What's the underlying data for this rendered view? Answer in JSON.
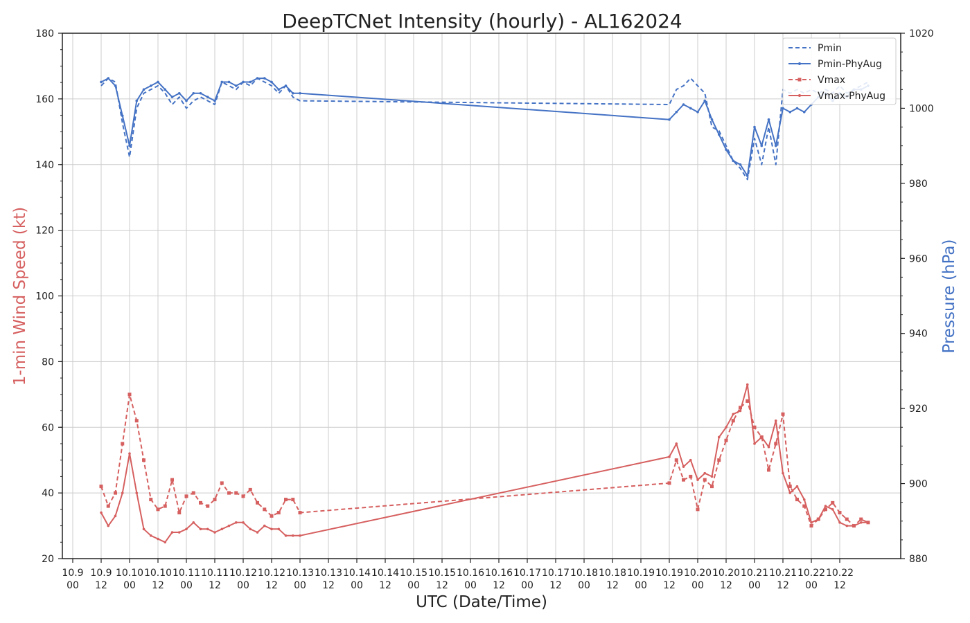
{
  "chart_data": {
    "type": "line",
    "title": "DeepTCNet Intensity (hourly) - AL162024",
    "xlabel": "UTC (Date/Time)",
    "ylabel_left": "1-min Wind Speed (kt)",
    "ylabel_right": "Pressure (hPa)",
    "ylim_left": [
      20,
      180
    ],
    "ylim_right": [
      880,
      1020
    ],
    "yticks_left": [
      "20",
      "40",
      "60",
      "80",
      "100",
      "120",
      "140",
      "160",
      "180"
    ],
    "yticks_right": [
      "880",
      "900",
      "920",
      "940",
      "960",
      "980",
      "1000",
      "1020"
    ],
    "xticks": [
      {
        "date": "10.9",
        "time": "00"
      },
      {
        "date": "10.9",
        "time": "12"
      },
      {
        "date": "10.10",
        "time": "00"
      },
      {
        "date": "10.10",
        "time": "12"
      },
      {
        "date": "10.11",
        "time": "00"
      },
      {
        "date": "10.11",
        "time": "12"
      },
      {
        "date": "10.12",
        "time": "00"
      },
      {
        "date": "10.12",
        "time": "12"
      },
      {
        "date": "10.13",
        "time": "00"
      },
      {
        "date": "10.13",
        "time": "12"
      },
      {
        "date": "10.14",
        "time": "00"
      },
      {
        "date": "10.14",
        "time": "12"
      },
      {
        "date": "10.15",
        "time": "00"
      },
      {
        "date": "10.15",
        "time": "12"
      },
      {
        "date": "10.16",
        "time": "00"
      },
      {
        "date": "10.16",
        "time": "12"
      },
      {
        "date": "10.17",
        "time": "00"
      },
      {
        "date": "10.17",
        "time": "12"
      },
      {
        "date": "10.18",
        "time": "00"
      },
      {
        "date": "10.18",
        "time": "12"
      },
      {
        "date": "10.19",
        "time": "00"
      },
      {
        "date": "10.19",
        "time": "12"
      },
      {
        "date": "10.20",
        "time": "00"
      },
      {
        "date": "10.20",
        "time": "12"
      },
      {
        "date": "10.21",
        "time": "00"
      },
      {
        "date": "10.21",
        "time": "12"
      },
      {
        "date": "10.22",
        "time": "00"
      },
      {
        "date": "10.22",
        "time": "12"
      }
    ],
    "grid": true,
    "legend_position": "top-right",
    "series": [
      {
        "name": "Pmin",
        "axis": "right",
        "color": "#4472c4",
        "style": "dashed",
        "marker": "none",
        "x": [
          "10.9 12",
          "10.9 15",
          "10.9 18",
          "10.9 21",
          "10.10 00",
          "10.10 03",
          "10.10 06",
          "10.10 09",
          "10.10 12",
          "10.10 15",
          "10.10 18",
          "10.10 21",
          "10.11 00",
          "10.11 03",
          "10.11 06",
          "10.11 09",
          "10.11 12",
          "10.11 15",
          "10.11 18",
          "10.11 21",
          "10.12 00",
          "10.12 03",
          "10.12 06",
          "10.12 09",
          "10.12 12",
          "10.12 15",
          "10.12 18",
          "10.12 21",
          "10.13 00",
          "10.19 12",
          "10.19 15",
          "10.19 18",
          "10.19 21",
          "10.20 00",
          "10.20 03",
          "10.20 06",
          "10.20 09",
          "10.20 12",
          "10.20 15",
          "10.20 18",
          "10.20 21",
          "10.21 00",
          "10.21 03",
          "10.21 06",
          "10.21 09",
          "10.21 12",
          "10.21 15",
          "10.21 18",
          "10.21 21",
          "10.22 00",
          "10.22 03",
          "10.22 06",
          "10.22 09",
          "10.22 12",
          "10.22 15",
          "10.22 18",
          "10.22 21",
          "10.23 00"
        ],
        "y": [
          1006,
          1008,
          1007,
          996,
          987,
          1000,
          1004,
          1005,
          1006,
          1004,
          1001,
          1003,
          1000,
          1002,
          1003,
          1002,
          1001,
          1007,
          1006,
          1005,
          1007,
          1006,
          1008,
          1007,
          1006,
          1004,
          1006,
          1003,
          1002,
          1001,
          1005,
          1006,
          1008,
          1006,
          1004,
          995,
          994,
          990,
          986,
          984,
          981,
          992,
          985,
          995,
          985,
          1005,
          1004,
          1005,
          1004,
          1005,
          1004,
          1005,
          1004,
          1006,
          1004,
          1005,
          1006,
          1007
        ]
      },
      {
        "name": "Pmin-PhyAug",
        "axis": "right",
        "color": "#4472c4",
        "style": "solid",
        "marker": "dot",
        "x": [
          "10.9 12",
          "10.9 15",
          "10.9 18",
          "10.9 21",
          "10.10 00",
          "10.10 03",
          "10.10 06",
          "10.10 09",
          "10.10 12",
          "10.10 15",
          "10.10 18",
          "10.10 21",
          "10.11 00",
          "10.11 03",
          "10.11 06",
          "10.11 09",
          "10.11 12",
          "10.11 15",
          "10.11 18",
          "10.11 21",
          "10.12 00",
          "10.12 03",
          "10.12 06",
          "10.12 09",
          "10.12 12",
          "10.12 15",
          "10.12 18",
          "10.12 21",
          "10.13 00",
          "10.19 12",
          "10.19 15",
          "10.19 18",
          "10.19 21",
          "10.20 00",
          "10.20 03",
          "10.20 06",
          "10.20 09",
          "10.20 12",
          "10.20 15",
          "10.20 18",
          "10.20 21",
          "10.21 00",
          "10.21 03",
          "10.21 06",
          "10.21 09",
          "10.21 12",
          "10.21 15",
          "10.21 18",
          "10.21 21",
          "10.22 00",
          "10.22 03",
          "10.22 06",
          "10.22 09",
          "10.22 12",
          "10.22 15",
          "10.22 18",
          "10.22 21",
          "10.23 00"
        ],
        "y": [
          1007,
          1008,
          1006,
          998,
          990,
          1002,
          1005,
          1006,
          1007,
          1005,
          1003,
          1004,
          1002,
          1004,
          1004,
          1003,
          1002,
          1007,
          1007,
          1006,
          1007,
          1007,
          1008,
          1008,
          1007,
          1005,
          1006,
          1004,
          1004,
          997,
          999,
          1001,
          1000,
          999,
          1002,
          997,
          993,
          989,
          986,
          985,
          982,
          995,
          990,
          997,
          990,
          1000,
          999,
          1000,
          999,
          1001,
          1003,
          1004,
          1002,
          1004,
          1003,
          1005,
          1005,
          1006
        ]
      },
      {
        "name": "Vmax",
        "axis": "left",
        "color": "#d65f5f",
        "style": "dashed",
        "marker": "square",
        "x": [
          "10.9 12",
          "10.9 15",
          "10.9 18",
          "10.9 21",
          "10.10 00",
          "10.10 03",
          "10.10 06",
          "10.10 09",
          "10.10 12",
          "10.10 15",
          "10.10 18",
          "10.10 21",
          "10.11 00",
          "10.11 03",
          "10.11 06",
          "10.11 09",
          "10.11 12",
          "10.11 15",
          "10.11 18",
          "10.11 21",
          "10.12 00",
          "10.12 03",
          "10.12 06",
          "10.12 09",
          "10.12 12",
          "10.12 15",
          "10.12 18",
          "10.12 21",
          "10.13 00",
          "10.19 12",
          "10.19 15",
          "10.19 18",
          "10.19 21",
          "10.20 00",
          "10.20 03",
          "10.20 06",
          "10.20 09",
          "10.20 12",
          "10.20 15",
          "10.20 18",
          "10.20 21",
          "10.21 00",
          "10.21 03",
          "10.21 06",
          "10.21 09",
          "10.21 12",
          "10.21 15",
          "10.21 18",
          "10.21 21",
          "10.22 00",
          "10.22 03",
          "10.22 06",
          "10.22 09",
          "10.22 12",
          "10.22 15",
          "10.22 18",
          "10.22 21",
          "10.23 00"
        ],
        "y": [
          42,
          36,
          40,
          55,
          70,
          62,
          50,
          38,
          35,
          36,
          44,
          34,
          39,
          40,
          37,
          36,
          38,
          43,
          40,
          40,
          39,
          41,
          37,
          35,
          33,
          34,
          38,
          38,
          34,
          43,
          50,
          44,
          45,
          35,
          44,
          42,
          50,
          56,
          62,
          66,
          68,
          60,
          57,
          47,
          55,
          64,
          42,
          38,
          36,
          30,
          32,
          35,
          37,
          34,
          32,
          30,
          32,
          31
        ]
      },
      {
        "name": "Vmax-PhyAug",
        "axis": "left",
        "color": "#d65f5f",
        "style": "solid",
        "marker": "dot",
        "x": [
          "10.9 12",
          "10.9 15",
          "10.9 18",
          "10.9 21",
          "10.10 00",
          "10.10 03",
          "10.10 06",
          "10.10 09",
          "10.10 12",
          "10.10 15",
          "10.10 18",
          "10.10 21",
          "10.11 00",
          "10.11 03",
          "10.11 06",
          "10.11 09",
          "10.11 12",
          "10.11 15",
          "10.11 18",
          "10.11 21",
          "10.12 00",
          "10.12 03",
          "10.12 06",
          "10.12 09",
          "10.12 12",
          "10.12 15",
          "10.12 18",
          "10.12 21",
          "10.13 00",
          "10.19 12",
          "10.19 15",
          "10.19 18",
          "10.19 21",
          "10.20 00",
          "10.20 03",
          "10.20 06",
          "10.20 09",
          "10.20 12",
          "10.20 15",
          "10.20 18",
          "10.20 21",
          "10.21 00",
          "10.21 03",
          "10.21 06",
          "10.21 09",
          "10.21 12",
          "10.21 15",
          "10.21 18",
          "10.21 21",
          "10.22 00",
          "10.22 03",
          "10.22 06",
          "10.22 09",
          "10.22 12",
          "10.22 15",
          "10.22 18",
          "10.22 21",
          "10.23 00"
        ],
        "y": [
          34,
          30,
          33,
          40,
          52,
          40,
          29,
          27,
          26,
          25,
          28,
          28,
          29,
          31,
          29,
          29,
          28,
          29,
          30,
          31,
          31,
          29,
          28,
          30,
          29,
          29,
          27,
          27,
          27,
          51,
          55,
          48,
          50,
          44,
          46,
          45,
          57,
          60,
          64,
          65,
          73,
          55,
          57,
          54,
          62,
          46,
          40,
          42,
          38,
          31,
          32,
          36,
          35,
          31,
          30,
          30,
          31,
          31
        ]
      }
    ]
  }
}
